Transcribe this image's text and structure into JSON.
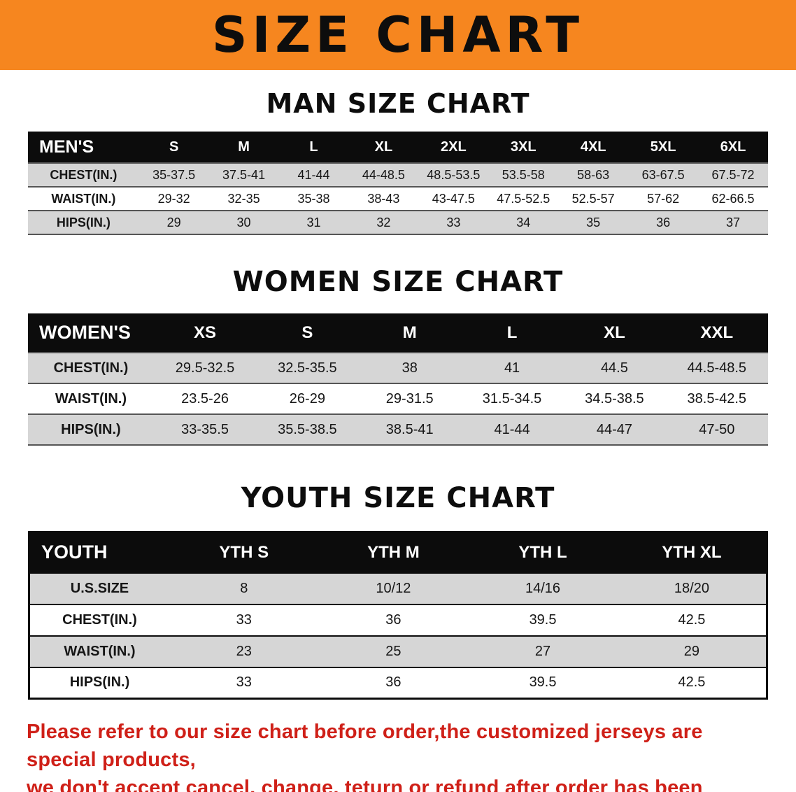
{
  "banner": {
    "title": "SIZE CHART",
    "bg_color": "#f6861f"
  },
  "chart_data": [
    {
      "type": "table",
      "title": "MAN SIZE CHART",
      "columns": [
        "MEN'S",
        "S",
        "M",
        "L",
        "XL",
        "2XL",
        "3XL",
        "4XL",
        "5XL",
        "6XL"
      ],
      "rows": [
        [
          "CHEST(IN.)",
          "35-37.5",
          "37.5-41",
          "41-44",
          "44-48.5",
          "48.5-53.5",
          "53.5-58",
          "58-63",
          "63-67.5",
          "67.5-72"
        ],
        [
          "WAIST(IN.)",
          "29-32",
          "32-35",
          "35-38",
          "38-43",
          "43-47.5",
          "47.5-52.5",
          "52.5-57",
          "57-62",
          "62-66.5"
        ],
        [
          "HIPS(IN.)",
          "29",
          "30",
          "31",
          "32",
          "33",
          "34",
          "35",
          "36",
          "37"
        ]
      ]
    },
    {
      "type": "table",
      "title": "WOMEN SIZE CHART",
      "columns": [
        "WOMEN'S",
        "XS",
        "S",
        "M",
        "L",
        "XL",
        "XXL"
      ],
      "rows": [
        [
          "CHEST(IN.)",
          "29.5-32.5",
          "32.5-35.5",
          "38",
          "41",
          "44.5",
          "44.5-48.5"
        ],
        [
          "WAIST(IN.)",
          "23.5-26",
          "26-29",
          "29-31.5",
          "31.5-34.5",
          "34.5-38.5",
          "38.5-42.5"
        ],
        [
          "HIPS(IN.)",
          "33-35.5",
          "35.5-38.5",
          "38.5-41",
          "41-44",
          "44-47",
          "47-50"
        ]
      ]
    },
    {
      "type": "table",
      "title": "YOUTH SIZE CHART",
      "columns": [
        "YOUTH",
        "YTH S",
        "YTH M",
        "YTH L",
        "YTH XL"
      ],
      "rows": [
        [
          "U.S.SIZE",
          "8",
          "10/12",
          "14/16",
          "18/20"
        ],
        [
          "CHEST(IN.)",
          "33",
          "36",
          "39.5",
          "42.5"
        ],
        [
          "WAIST(IN.)",
          "23",
          "25",
          "27",
          "29"
        ],
        [
          "HIPS(IN.)",
          "33",
          "36",
          "39.5",
          "42.5"
        ]
      ]
    }
  ],
  "footer": {
    "line1": "Please refer to our size chart before order,the customized jerseys are special products,",
    "line2": "we don't accept cancel, change, teturn or refund after order has been placed!",
    "text_color": "#cf2018"
  }
}
